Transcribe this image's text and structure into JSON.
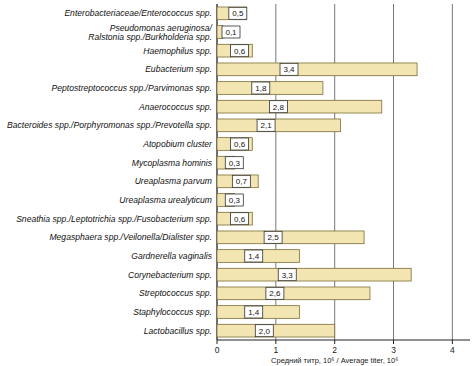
{
  "chart_data": {
    "type": "bar",
    "orientation": "horizontal",
    "x_label": "Средний титр, 10⁶ / Average titer, 10⁶",
    "categories": [
      "Enterobacteriaceae/Enterococcus spp.",
      "Pseudomonas aeruginosa/\nRalstonia spp./Burkholderia spp.",
      "Haemophilus spp.",
      "Eubacterium spp.",
      "Peptostreptococcus spp./Parvimonas spp.",
      "Anaerococcus spp.",
      "Bacteroides spp./Porphyromonas spp./Prevotella spp.",
      "Atopobium cluster",
      "Mycoplasma hominis",
      "Ureaplasma parvum",
      "Ureaplasma urealyticum",
      "Sneathia spp./Leptotrichia spp./Fusobacterium spp.",
      "Megasphaera spp./Veilonella/Dialister spp.",
      "Gardnerella vaginalis",
      "Corynebacterium spp.",
      "Streptococcus spp.",
      "Staphylococcus spp.",
      "Lactobacillus spp."
    ],
    "values": [
      0.5,
      0.1,
      0.6,
      3.4,
      1.8,
      2.8,
      2.1,
      0.6,
      0.3,
      0.7,
      0.3,
      0.6,
      2.5,
      1.4,
      3.3,
      2.6,
      1.4,
      2.0
    ],
    "value_labels": [
      "0,5",
      "0,1",
      "0,6",
      "3,4",
      "1,8",
      "2,8",
      "2,1",
      "0,6",
      "0,3",
      "0,7",
      "0,3",
      "0,6",
      "2,5",
      "1,4",
      "3,3",
      "2,6",
      "1,4",
      "2,0"
    ],
    "data_labels": true,
    "color": "#f3e5b1",
    "xlim": [
      0,
      4.3
    ],
    "xticks": [
      0,
      1,
      2,
      3,
      4
    ],
    "grid": true
  }
}
